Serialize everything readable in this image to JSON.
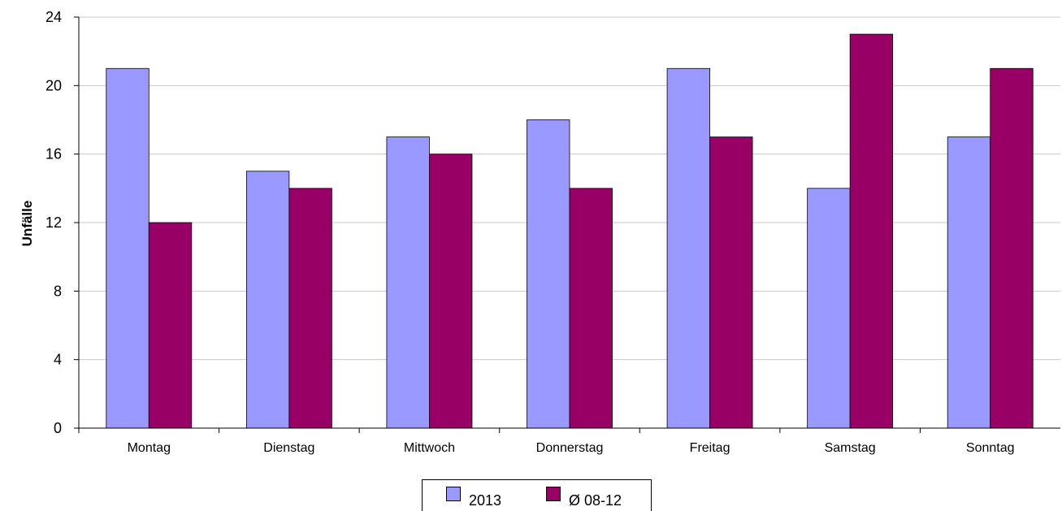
{
  "chart_data": {
    "type": "bar",
    "title": "",
    "xlabel": "",
    "ylabel": "Unfälle",
    "categories": [
      "Montag",
      "Dienstag",
      "Mittwoch",
      "Donnerstag",
      "Freitag",
      "Samstag",
      "Sonntag"
    ],
    "series": [
      {
        "name": "2013",
        "values": [
          21,
          15,
          17,
          18,
          21,
          14,
          17
        ],
        "color": "#9999ff"
      },
      {
        "name": "Ø 08-12",
        "values": [
          12,
          14,
          16,
          14,
          17,
          23,
          21
        ],
        "color": "#990066"
      }
    ],
    "ylim": [
      0,
      24
    ],
    "yticks": [
      0,
      4,
      8,
      12,
      16,
      20,
      24
    ],
    "grid": true,
    "legend_position": "bottom"
  }
}
